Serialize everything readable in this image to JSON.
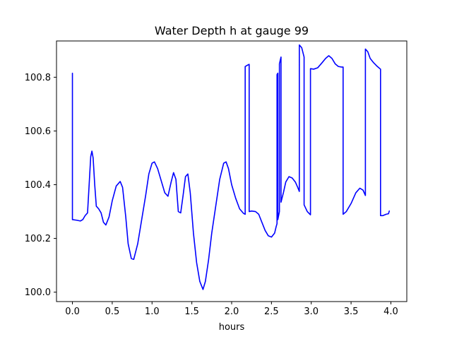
{
  "chart_data": {
    "type": "line",
    "title": "Water Depth h at gauge 99",
    "xlabel": "hours",
    "ylabel": "",
    "xlim": [
      -0.2,
      4.2
    ],
    "ylim": [
      99.965,
      100.935
    ],
    "xticks": [
      0.0,
      0.5,
      1.0,
      1.5,
      2.0,
      2.5,
      3.0,
      3.5,
      4.0
    ],
    "xtick_labels": [
      "0.0",
      "0.5",
      "1.0",
      "1.5",
      "2.0",
      "2.5",
      "3.0",
      "3.5",
      "4.0"
    ],
    "yticks": [
      100.0,
      100.2,
      100.4,
      100.6,
      100.8
    ],
    "ytick_labels": [
      "100.0",
      "100.2",
      "100.4",
      "100.6",
      "100.8"
    ],
    "grid": false,
    "series": [
      {
        "color": "#0000ff",
        "points": [
          [
            0.0,
            100.815
          ],
          [
            0.0,
            100.27
          ],
          [
            0.05,
            100.268
          ],
          [
            0.1,
            100.265
          ],
          [
            0.13,
            100.27
          ],
          [
            0.16,
            100.285
          ],
          [
            0.19,
            100.295
          ],
          [
            0.21,
            100.4
          ],
          [
            0.23,
            100.505
          ],
          [
            0.245,
            100.525
          ],
          [
            0.26,
            100.5
          ],
          [
            0.28,
            100.4
          ],
          [
            0.3,
            100.32
          ],
          [
            0.33,
            100.31
          ],
          [
            0.36,
            100.295
          ],
          [
            0.39,
            100.26
          ],
          [
            0.42,
            100.25
          ],
          [
            0.46,
            100.28
          ],
          [
            0.5,
            100.34
          ],
          [
            0.55,
            100.395
          ],
          [
            0.6,
            100.412
          ],
          [
            0.63,
            100.39
          ],
          [
            0.67,
            100.28
          ],
          [
            0.7,
            100.18
          ],
          [
            0.74,
            100.125
          ],
          [
            0.77,
            100.122
          ],
          [
            0.82,
            100.18
          ],
          [
            0.87,
            100.27
          ],
          [
            0.92,
            100.36
          ],
          [
            0.96,
            100.44
          ],
          [
            1.0,
            100.48
          ],
          [
            1.03,
            100.485
          ],
          [
            1.07,
            100.46
          ],
          [
            1.12,
            100.41
          ],
          [
            1.16,
            100.37
          ],
          [
            1.2,
            100.357
          ],
          [
            1.24,
            100.41
          ],
          [
            1.27,
            100.445
          ],
          [
            1.3,
            100.42
          ],
          [
            1.33,
            100.3
          ],
          [
            1.36,
            100.295
          ],
          [
            1.39,
            100.36
          ],
          [
            1.42,
            100.43
          ],
          [
            1.45,
            100.44
          ],
          [
            1.48,
            100.37
          ],
          [
            1.52,
            100.22
          ],
          [
            1.56,
            100.11
          ],
          [
            1.6,
            100.04
          ],
          [
            1.64,
            100.01
          ],
          [
            1.67,
            100.04
          ],
          [
            1.71,
            100.12
          ],
          [
            1.75,
            100.22
          ],
          [
            1.8,
            100.32
          ],
          [
            1.85,
            100.42
          ],
          [
            1.9,
            100.48
          ],
          [
            1.93,
            100.485
          ],
          [
            1.96,
            100.46
          ],
          [
            2.0,
            100.4
          ],
          [
            2.05,
            100.35
          ],
          [
            2.1,
            100.31
          ],
          [
            2.15,
            100.293
          ],
          [
            2.17,
            100.29
          ],
          [
            2.17,
            100.84
          ],
          [
            2.2,
            100.845
          ],
          [
            2.22,
            100.848
          ],
          [
            2.22,
            100.3
          ],
          [
            2.25,
            100.302
          ],
          [
            2.3,
            100.3
          ],
          [
            2.34,
            100.29
          ],
          [
            2.38,
            100.26
          ],
          [
            2.42,
            100.23
          ],
          [
            2.46,
            100.21
          ],
          [
            2.5,
            100.205
          ],
          [
            2.54,
            100.22
          ],
          [
            2.56,
            100.245
          ],
          [
            2.57,
            100.255
          ],
          [
            2.57,
            100.81
          ],
          [
            2.58,
            100.815
          ],
          [
            2.58,
            100.27
          ],
          [
            2.6,
            100.3
          ],
          [
            2.6,
            100.85
          ],
          [
            2.62,
            100.875
          ],
          [
            2.62,
            100.335
          ],
          [
            2.65,
            100.37
          ],
          [
            2.68,
            100.41
          ],
          [
            2.72,
            100.43
          ],
          [
            2.76,
            100.425
          ],
          [
            2.8,
            100.41
          ],
          [
            2.83,
            100.39
          ],
          [
            2.85,
            100.375
          ],
          [
            2.85,
            100.92
          ],
          [
            2.88,
            100.91
          ],
          [
            2.91,
            100.875
          ],
          [
            2.91,
            100.325
          ],
          [
            2.95,
            100.3
          ],
          [
            2.99,
            100.288
          ],
          [
            2.99,
            100.832
          ],
          [
            3.03,
            100.83
          ],
          [
            3.08,
            100.835
          ],
          [
            3.13,
            100.852
          ],
          [
            3.18,
            100.87
          ],
          [
            3.22,
            100.88
          ],
          [
            3.26,
            100.87
          ],
          [
            3.3,
            100.85
          ],
          [
            3.34,
            100.84
          ],
          [
            3.38,
            100.838
          ],
          [
            3.4,
            100.838
          ],
          [
            3.4,
            100.29
          ],
          [
            3.44,
            100.3
          ],
          [
            3.5,
            100.33
          ],
          [
            3.56,
            100.37
          ],
          [
            3.61,
            100.387
          ],
          [
            3.65,
            100.38
          ],
          [
            3.68,
            100.36
          ],
          [
            3.68,
            100.905
          ],
          [
            3.71,
            100.895
          ],
          [
            3.74,
            100.87
          ],
          [
            3.78,
            100.855
          ],
          [
            3.83,
            100.84
          ],
          [
            3.87,
            100.83
          ],
          [
            3.87,
            100.285
          ],
          [
            3.9,
            100.285
          ],
          [
            3.94,
            100.29
          ],
          [
            3.97,
            100.292
          ],
          [
            3.98,
            100.302
          ]
        ]
      }
    ]
  }
}
